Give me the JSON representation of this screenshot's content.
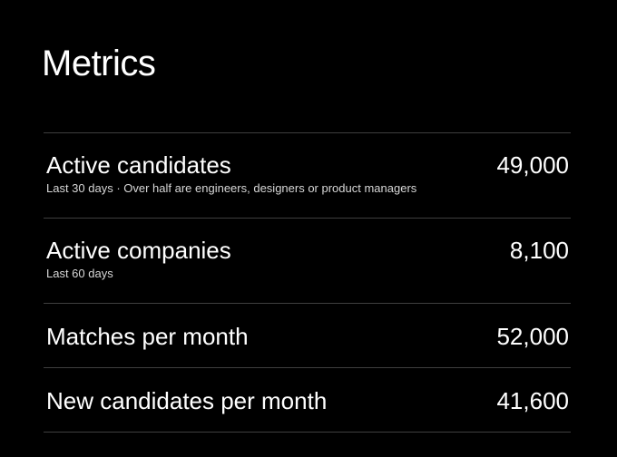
{
  "header": {
    "title": "Metrics"
  },
  "metrics": [
    {
      "label": "Active candidates",
      "note": "Last 30 days · Over half are engineers, designers or product managers",
      "value": "49,000"
    },
    {
      "label": "Active companies",
      "note": "Last 60 days",
      "value": "8,100"
    },
    {
      "label": "Matches per month",
      "value": "52,000"
    },
    {
      "label": "New candidates per month",
      "value": "41,600"
    }
  ],
  "colors": {
    "background": "#000000",
    "text": "#ffffff",
    "note_text": "#d7d7d7",
    "divider": "#3f3f3f"
  }
}
